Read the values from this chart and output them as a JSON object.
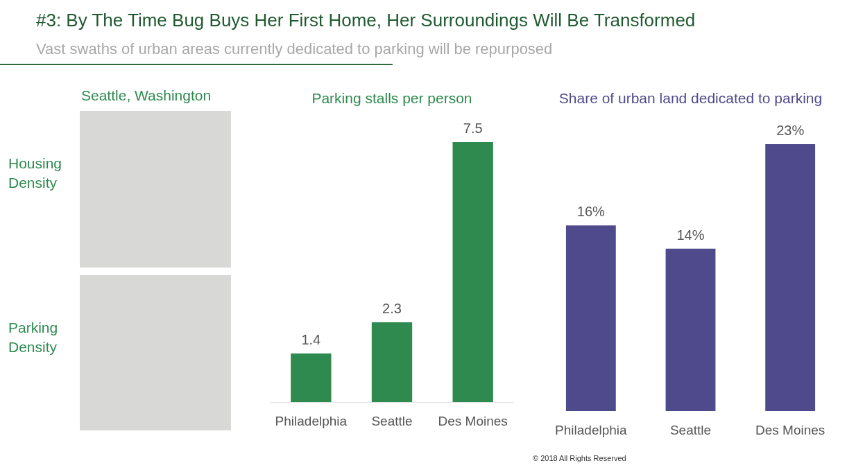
{
  "chart_data": [
    {
      "type": "other",
      "title": "#3: By The Time Bug Buys Her First Home, Her Surroundings Will Be Transformed",
      "subtitle": "Vast swaths of urban areas currently dedicated to parking will be repurposed",
      "annotations": [
        "Seattle, Washington",
        "Housing Density",
        "Parking Density",
        "© 2018 All Rights Reserved"
      ]
    },
    {
      "type": "bar",
      "title": "Parking stalls per person",
      "categories": [
        "Philadelphia",
        "Seattle",
        "Des Moines"
      ],
      "values": [
        1.4,
        2.3,
        7.5
      ],
      "color": "#2e8a4f",
      "data_labels": true
    },
    {
      "type": "bar",
      "title": "Share of urban land dedicated to parking",
      "categories": [
        "Philadelphia",
        "Seattle",
        "Des Moines"
      ],
      "values": [
        16,
        14,
        23
      ],
      "value_labels": [
        "16%",
        "14%",
        "23%"
      ],
      "color": "#4f4a8c"
    }
  ]
}
